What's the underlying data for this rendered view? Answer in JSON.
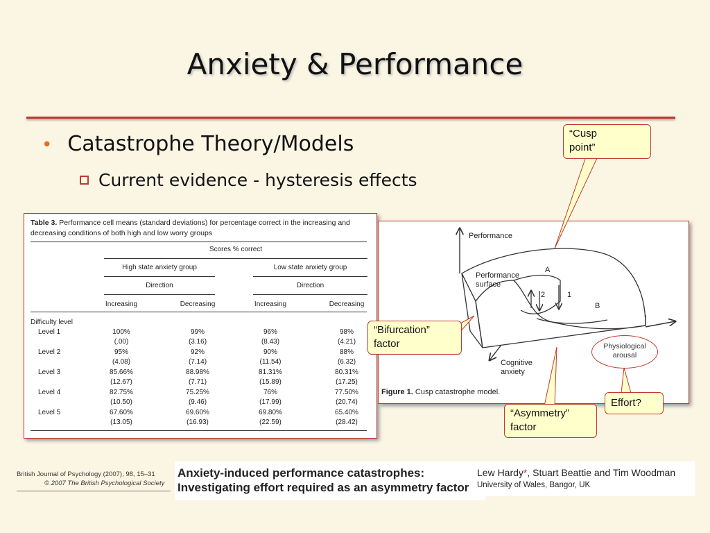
{
  "slide": {
    "title": "Anxiety & Performance",
    "bullet1": "Catastrophe Theory/Models",
    "bullet2": "Current evidence - hysteresis effects"
  },
  "table": {
    "caption_bold": "Table 3.",
    "caption_text": "Performance cell means (standard deviations) for percentage correct in the increasing and decreasing conditions of both high and low worry groups",
    "scores_header": "Scores % correct",
    "group_high": "High state anxiety group",
    "group_low": "Low state anxiety group",
    "direction_label": "Direction",
    "col_increasing": "Increasing",
    "col_decreasing": "Decreasing",
    "row_header": "Difficulty level",
    "rows": [
      {
        "level": "Level 1",
        "means": [
          "100%",
          "99%",
          "96%",
          "98%"
        ],
        "sds": [
          "(.00)",
          "(3.16)",
          "(8.43)",
          "(4.21)"
        ]
      },
      {
        "level": "Level 2",
        "means": [
          "95%",
          "92%",
          "90%",
          "88%"
        ],
        "sds": [
          "(4.08)",
          "(7.14)",
          "(11.54)",
          "(6.32)"
        ]
      },
      {
        "level": "Level 3",
        "means": [
          "85.66%",
          "88.98%",
          "81.31%",
          "80.31%"
        ],
        "sds": [
          "(12.67)",
          "(7.71)",
          "(15.89)",
          "(17.25)"
        ]
      },
      {
        "level": "Level 4",
        "means": [
          "82.75%",
          "75.25%",
          "76%",
          "77.50%"
        ],
        "sds": [
          "(10.50)",
          "(9.46)",
          "(17.99)",
          "(20.74)"
        ]
      },
      {
        "level": "Level 5",
        "means": [
          "67.60%",
          "69.60%",
          "69.80%",
          "65.40%"
        ],
        "sds": [
          "(13.05)",
          "(16.93)",
          "(22.59)",
          "(28.42)"
        ]
      }
    ]
  },
  "figure": {
    "performance": "Performance",
    "surface_line1": "Performance",
    "surface_line2": "surface",
    "label_a": "A",
    "label_b": "B",
    "arrow_1": "1",
    "arrow_2": "2",
    "cognitive_line1": "Cognitive",
    "cognitive_line2": "anxiety",
    "caption_bold": "Figure 1.",
    "caption_text": "Cusp catastrophe model."
  },
  "callouts": {
    "cusp_line1": "“Cusp",
    "cusp_line2": "point”",
    "bifurcation_line1": "“Bifurcation”",
    "bifurcation_line2": "factor",
    "asymmetry_line1": "“Asymmetry”",
    "asymmetry_line2": "factor",
    "effort": "Effort?",
    "physio_line1": "Physiological",
    "physio_line2": "arousal"
  },
  "footer": {
    "journal_line1": "British Journal of Psychology (2007), 98, 15–31",
    "journal_line2": "© 2007 The British Psychological Society",
    "article_title": "Anxiety-induced performance catastrophes: Investigating effort required as an asymmetry factor",
    "authors_pre": "Lew Hardy",
    "authors_star": "*",
    "authors_post": ", Stuart Beattie and Tim Woodman",
    "affiliation": "University of Wales, Bangor, UK"
  },
  "colors": {
    "accent_red": "#c0392b",
    "bullet_orange": "#e07020",
    "callout_fill": "#ffffcc",
    "background": "#fbf6e4"
  }
}
